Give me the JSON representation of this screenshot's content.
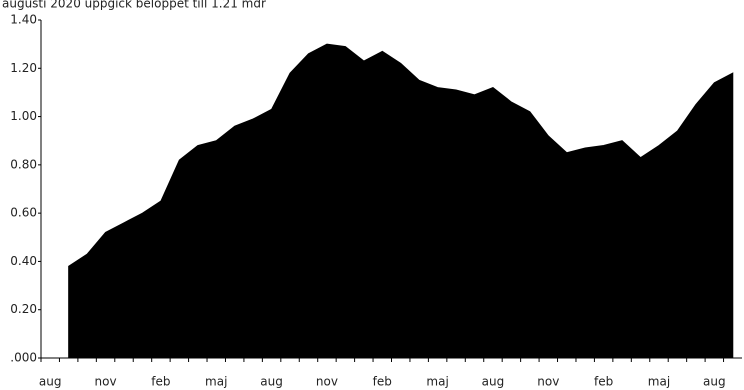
{
  "chart_data": {
    "type": "area",
    "title": "augusti 2020 uppgick beloppet till 1.21 mdr",
    "categories": [
      "aug",
      null,
      null,
      "nov",
      null,
      null,
      "feb",
      null,
      null,
      "maj",
      null,
      null,
      "aug",
      null,
      null,
      "nov",
      null,
      null,
      "feb",
      null,
      null,
      "maj",
      null,
      null,
      "aug",
      null,
      null,
      "nov",
      null,
      null,
      "feb",
      null,
      null,
      "maj",
      null,
      null,
      "aug",
      null
    ],
    "values": [
      null,
      0.38,
      0.43,
      0.52,
      0.56,
      0.6,
      0.65,
      0.82,
      0.88,
      0.9,
      0.96,
      0.99,
      1.03,
      1.18,
      1.26,
      1.3,
      1.29,
      1.23,
      1.27,
      1.22,
      1.15,
      1.12,
      1.11,
      1.09,
      1.12,
      1.06,
      1.02,
      0.92,
      0.85,
      0.87,
      0.88,
      0.9,
      0.83,
      0.88,
      0.94,
      1.05,
      1.14,
      1.18
    ],
    "color": "#000000",
    "ylim": [
      0,
      1.4
    ],
    "yticks": [
      {
        "value": 0,
        "label": ".000"
      },
      {
        "value": 0.2,
        "label": "0.20"
      },
      {
        "value": 0.4,
        "label": "0.40"
      },
      {
        "value": 0.6,
        "label": "0.60"
      },
      {
        "value": 0.8,
        "label": "0.80"
      },
      {
        "value": 1.0,
        "label": "1.00"
      },
      {
        "value": 1.2,
        "label": "1.20"
      },
      {
        "value": 1.4,
        "label": "1.40"
      }
    ]
  }
}
